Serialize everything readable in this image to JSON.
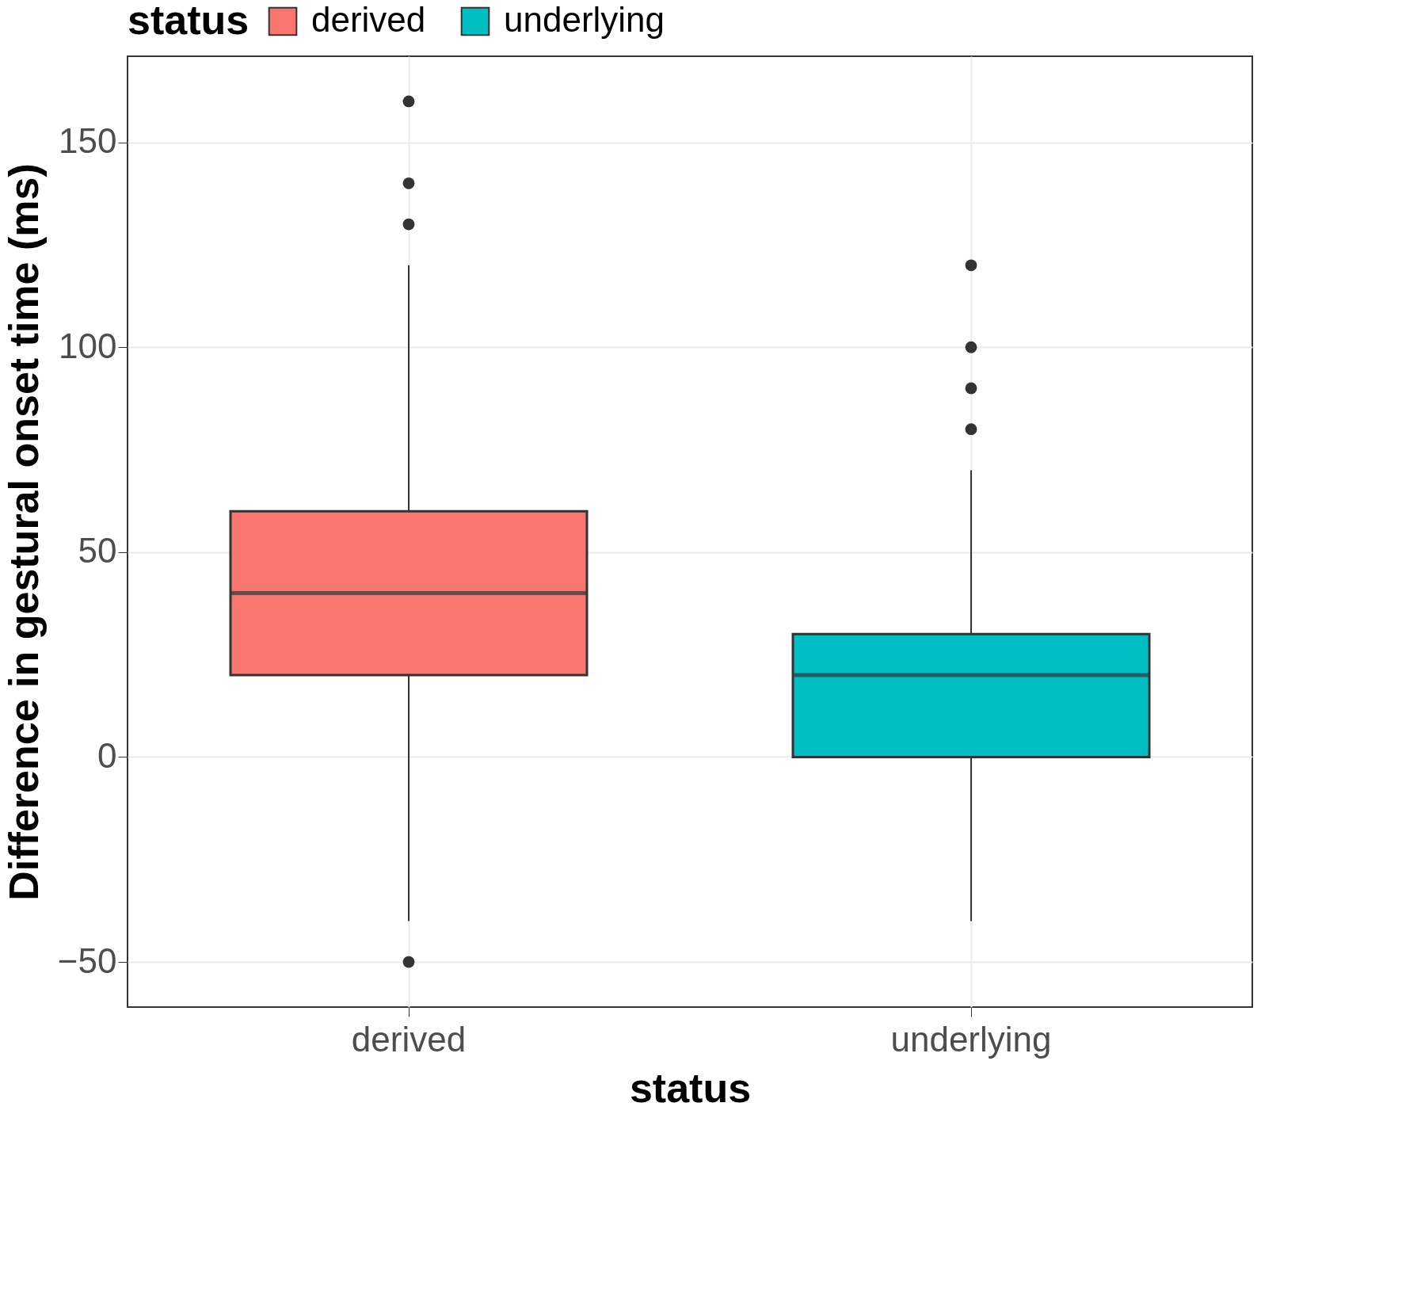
{
  "chart_data": {
    "type": "box",
    "xlabel": "status",
    "ylabel": "Difference in gestural onset time (ms)",
    "legend_title": "status",
    "categories": [
      "derived",
      "underlying"
    ],
    "series": [
      {
        "name": "derived",
        "color": "#f8766d",
        "boxes": [
          {
            "low": -40,
            "q1": 20,
            "median": 40,
            "q3": 60,
            "high": 120,
            "outliers": [
              130,
              140,
              160,
              -50
            ]
          },
          null
        ]
      },
      {
        "name": "underlying",
        "color": "#00bfc4",
        "boxes": [
          null,
          {
            "low": -40,
            "q1": 0,
            "median": 20,
            "q3": 30,
            "high": 70,
            "outliers": [
              80,
              90,
              100,
              120
            ]
          }
        ]
      }
    ],
    "ylim": [
      -61,
      171
    ],
    "yticks": [
      -50,
      0,
      50,
      100,
      150
    ],
    "grid": true,
    "legend": "top"
  }
}
